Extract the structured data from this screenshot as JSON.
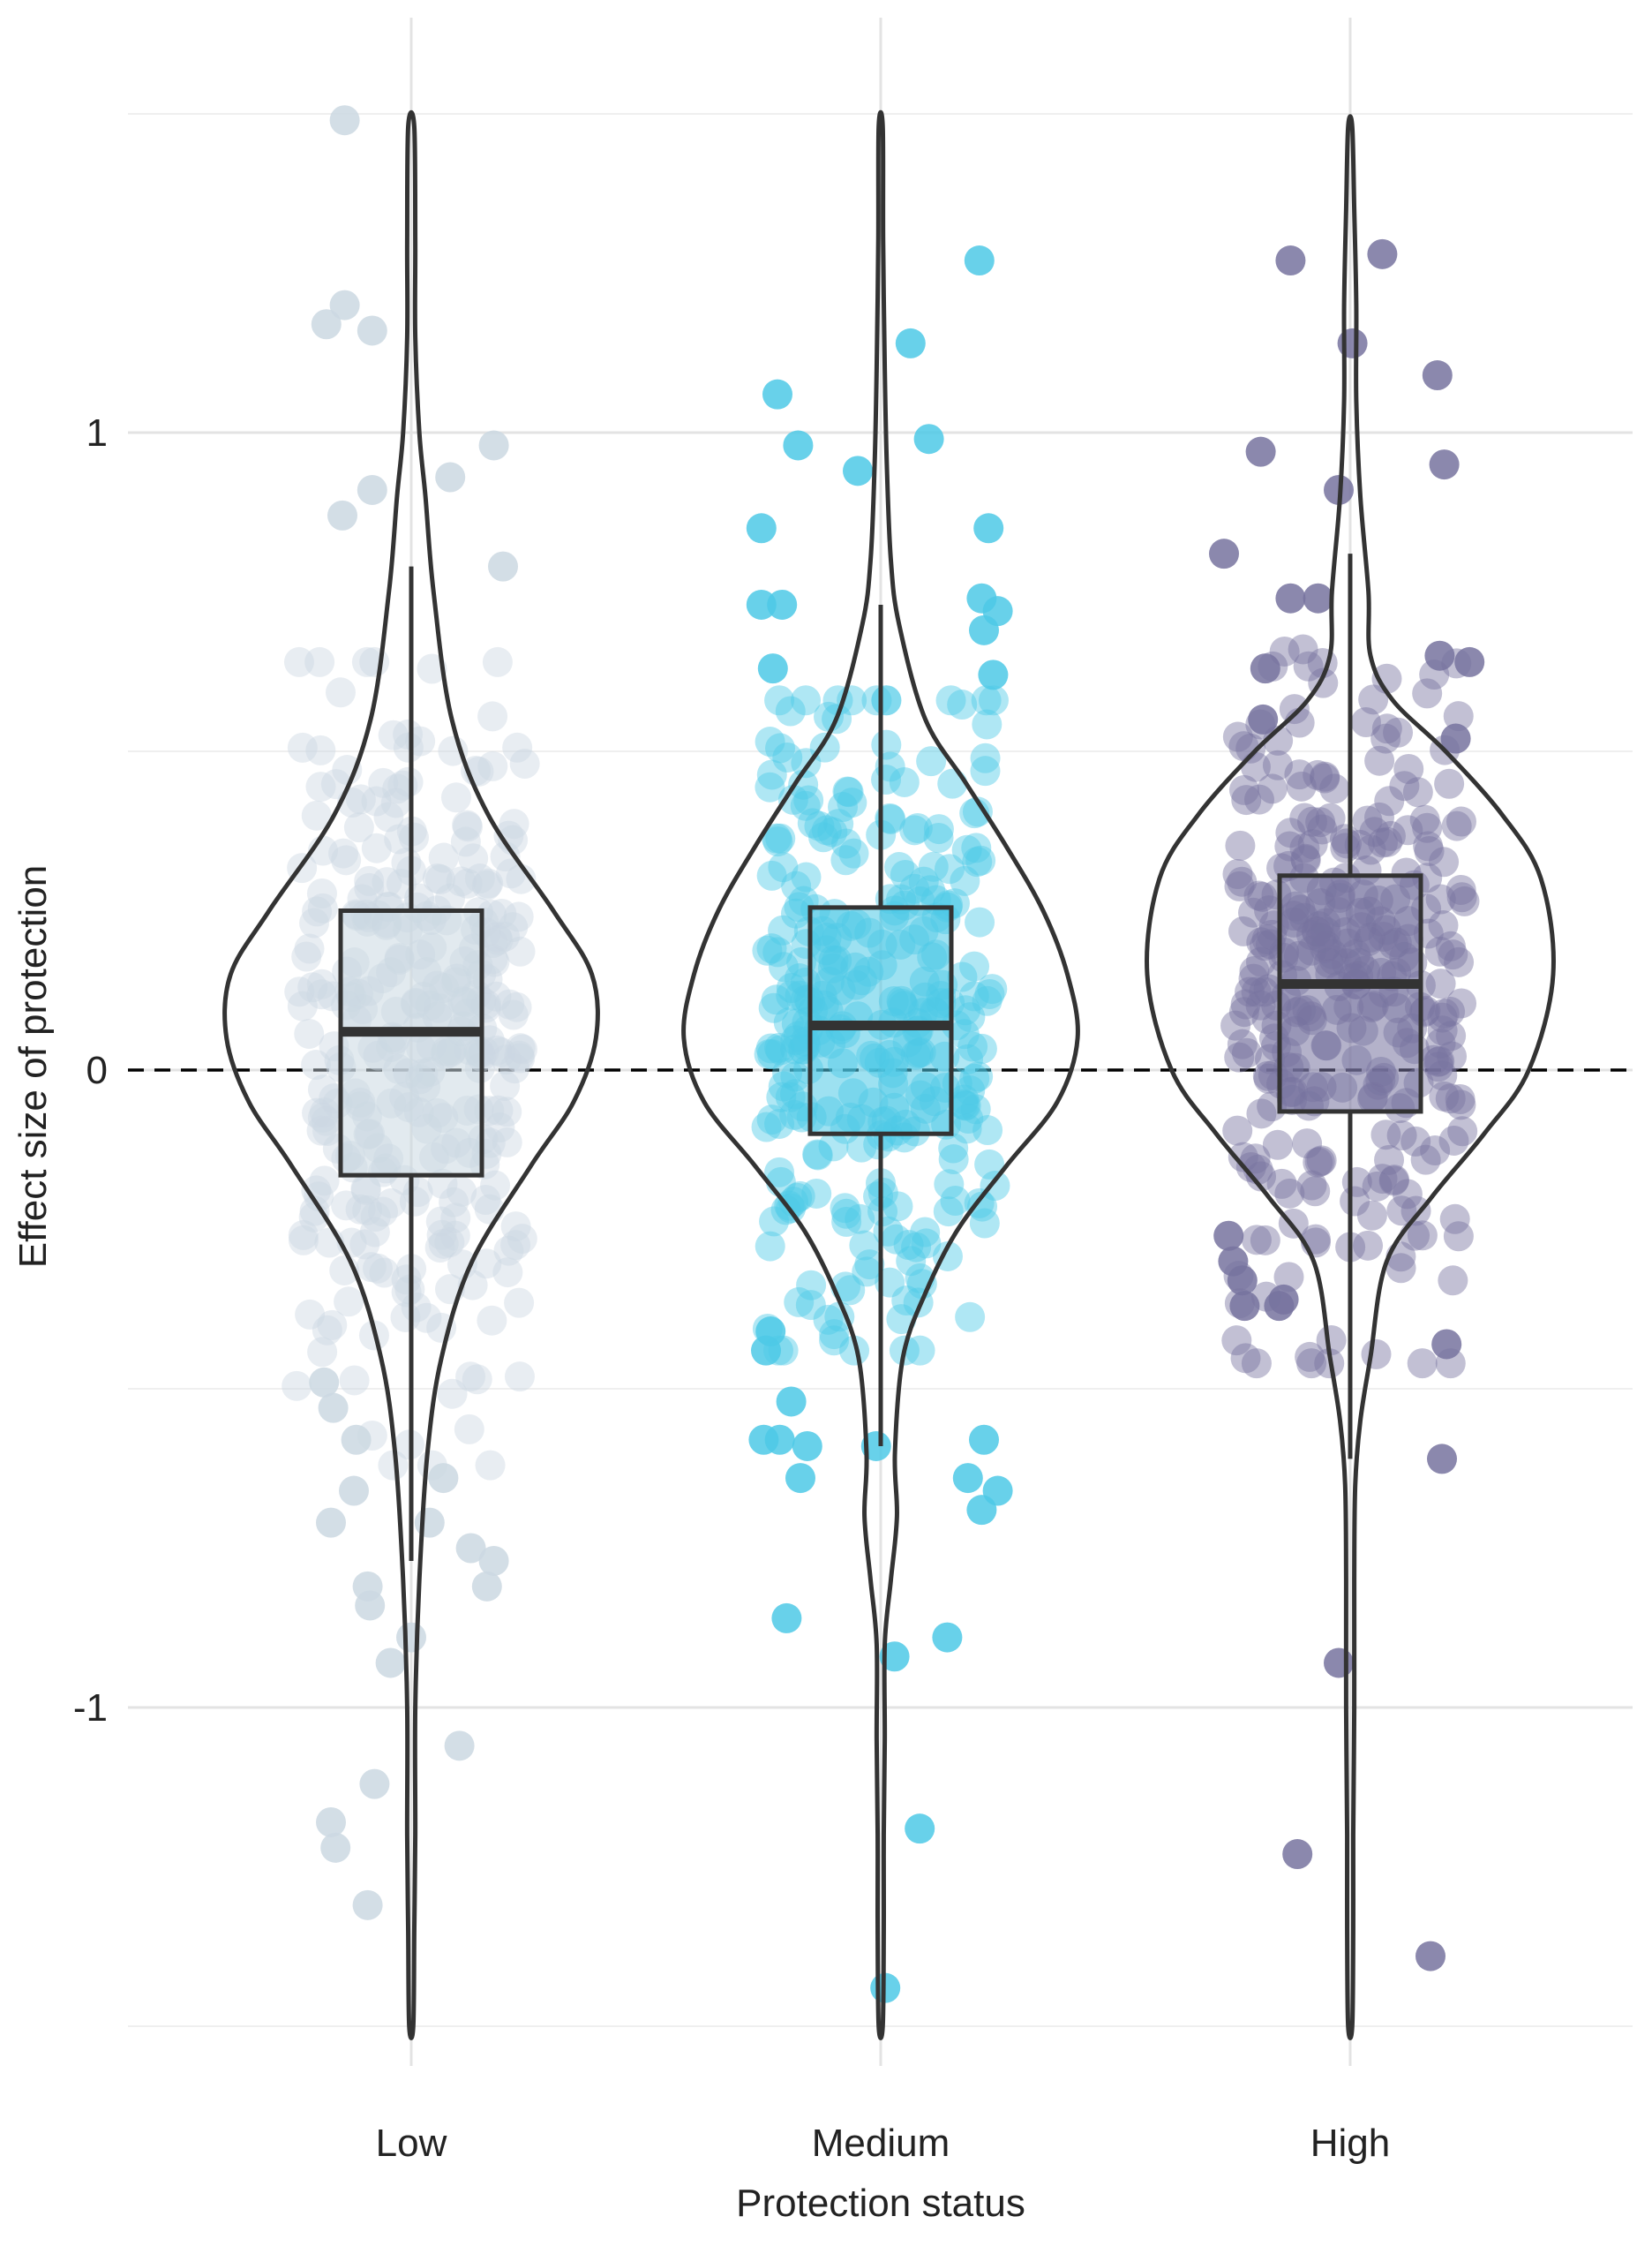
{
  "chart_data": {
    "type": "violin",
    "xlabel": "Protection status",
    "ylabel": "Effect size of protection",
    "categories": [
      "Low",
      "Medium",
      "High"
    ],
    "yticks": [
      {
        "value": 1,
        "label": "1"
      },
      {
        "value": 0,
        "label": "0"
      },
      {
        "value": -1,
        "label": "-1"
      }
    ],
    "ylim": [
      -1.5,
      1.5
    ],
    "grid": true,
    "legend": "none",
    "reference_line": {
      "y": 0,
      "style": "dashed"
    },
    "series": [
      {
        "category": "Low",
        "color": "#cbd8e2",
        "box": {
          "whisker_low": -0.77,
          "q1": -0.165,
          "median": 0.06,
          "q3": 0.25,
          "whisker_high": 0.79
        },
        "range": [
          -1.5,
          1.5
        ],
        "violin_density": [
          {
            "y": 1.48,
            "w": 0.015
          },
          {
            "y": 1.3,
            "w": 0.02
          },
          {
            "y": 1.15,
            "w": 0.02
          },
          {
            "y": 1.0,
            "w": 0.04
          },
          {
            "y": 0.9,
            "w": 0.07
          },
          {
            "y": 0.75,
            "w": 0.11
          },
          {
            "y": 0.55,
            "w": 0.2
          },
          {
            "y": 0.4,
            "w": 0.38
          },
          {
            "y": 0.25,
            "w": 0.7
          },
          {
            "y": 0.15,
            "w": 0.89
          },
          {
            "y": 0.05,
            "w": 0.91
          },
          {
            "y": -0.05,
            "w": 0.8
          },
          {
            "y": -0.15,
            "w": 0.59
          },
          {
            "y": -0.3,
            "w": 0.3
          },
          {
            "y": -0.45,
            "w": 0.15
          },
          {
            "y": -0.6,
            "w": 0.08
          },
          {
            "y": -0.8,
            "w": 0.04
          },
          {
            "y": -1.0,
            "w": 0.02
          },
          {
            "y": -1.2,
            "w": 0.02
          },
          {
            "y": -1.35,
            "w": 0.015
          },
          {
            "y": -1.5,
            "w": 0.01
          }
        ],
        "outlier_points": [
          {
            "x": -0.29,
            "y": 1.49
          },
          {
            "x": -0.29,
            "y": 1.2
          },
          {
            "x": -0.37,
            "y": 1.17
          },
          {
            "x": -0.17,
            "y": 1.16
          },
          {
            "x": 0.36,
            "y": 0.98
          },
          {
            "x": 0.17,
            "y": 0.93
          },
          {
            "x": -0.17,
            "y": 0.91
          },
          {
            "x": -0.3,
            "y": 0.87
          },
          {
            "x": 0.4,
            "y": 0.79
          },
          {
            "x": -0.38,
            "y": -0.49
          },
          {
            "x": -0.34,
            "y": -0.53
          },
          {
            "x": -0.24,
            "y": -0.58
          },
          {
            "x": -0.35,
            "y": -0.71
          },
          {
            "x": -0.25,
            "y": -0.66
          },
          {
            "x": 0.14,
            "y": -0.64
          },
          {
            "x": 0.26,
            "y": -0.75
          },
          {
            "x": 0.36,
            "y": -0.77
          },
          {
            "x": 0.33,
            "y": -0.81
          },
          {
            "x": -0.19,
            "y": -0.81
          },
          {
            "x": -0.18,
            "y": -0.84
          },
          {
            "x": 0.08,
            "y": -0.71
          },
          {
            "x": -0.09,
            "y": -0.93
          },
          {
            "x": 0.0,
            "y": -0.89
          },
          {
            "x": 0.21,
            "y": -1.06
          },
          {
            "x": -0.16,
            "y": -1.12
          },
          {
            "x": -0.35,
            "y": -1.18
          },
          {
            "x": -0.33,
            "y": -1.22
          },
          {
            "x": -0.19,
            "y": -1.31
          }
        ]
      },
      {
        "category": "Medium",
        "color": "#4dc9e6",
        "box": {
          "whisker_low": -0.59,
          "q1": -0.1,
          "median": 0.07,
          "q3": 0.255,
          "whisker_high": 0.73
        },
        "range": [
          -1.5,
          1.49
        ],
        "violin_density": [
          {
            "y": 1.48,
            "w": 0.01
          },
          {
            "y": 1.3,
            "w": 0.012
          },
          {
            "y": 1.1,
            "w": 0.02
          },
          {
            "y": 0.95,
            "w": 0.03
          },
          {
            "y": 0.8,
            "w": 0.05
          },
          {
            "y": 0.7,
            "w": 0.09
          },
          {
            "y": 0.55,
            "w": 0.22
          },
          {
            "y": 0.45,
            "w": 0.42
          },
          {
            "y": 0.35,
            "w": 0.62
          },
          {
            "y": 0.25,
            "w": 0.8
          },
          {
            "y": 0.15,
            "w": 0.92
          },
          {
            "y": 0.05,
            "w": 0.97
          },
          {
            "y": -0.05,
            "w": 0.87
          },
          {
            "y": -0.15,
            "w": 0.62
          },
          {
            "y": -0.25,
            "w": 0.38
          },
          {
            "y": -0.35,
            "w": 0.22
          },
          {
            "y": -0.45,
            "w": 0.11
          },
          {
            "y": -0.6,
            "w": 0.07
          },
          {
            "y": -0.7,
            "w": 0.08
          },
          {
            "y": -0.8,
            "w": 0.05
          },
          {
            "y": -0.9,
            "w": 0.02
          },
          {
            "y": -1.05,
            "w": 0.02
          },
          {
            "y": -1.2,
            "w": 0.015
          },
          {
            "y": -1.35,
            "w": 0.015
          },
          {
            "y": -1.5,
            "w": 0.01
          }
        ],
        "outlier_points": [
          {
            "x": 0.43,
            "y": 1.27
          },
          {
            "x": 0.13,
            "y": 1.14
          },
          {
            "x": -0.45,
            "y": 1.06
          },
          {
            "x": -0.36,
            "y": 0.98
          },
          {
            "x": 0.21,
            "y": 0.99
          },
          {
            "x": -0.1,
            "y": 0.94
          },
          {
            "x": -0.52,
            "y": 0.85
          },
          {
            "x": 0.47,
            "y": 0.85
          },
          {
            "x": -0.52,
            "y": 0.73
          },
          {
            "x": -0.43,
            "y": 0.73
          },
          {
            "x": 0.44,
            "y": 0.74
          },
          {
            "x": 0.51,
            "y": 0.72
          },
          {
            "x": 0.45,
            "y": 0.69
          },
          {
            "x": -0.47,
            "y": 0.63
          },
          {
            "x": 0.49,
            "y": 0.62
          },
          {
            "x": -0.39,
            "y": -0.52
          },
          {
            "x": -0.48,
            "y": -0.41
          },
          {
            "x": -0.5,
            "y": -0.44
          },
          {
            "x": -0.32,
            "y": -0.59
          },
          {
            "x": -0.44,
            "y": -0.58
          },
          {
            "x": -0.51,
            "y": -0.58
          },
          {
            "x": -0.35,
            "y": -0.64
          },
          {
            "x": -0.02,
            "y": -0.59
          },
          {
            "x": 0.45,
            "y": -0.58
          },
          {
            "x": 0.38,
            "y": -0.64
          },
          {
            "x": 0.51,
            "y": -0.66
          },
          {
            "x": 0.44,
            "y": -0.69
          },
          {
            "x": -0.41,
            "y": -0.86
          },
          {
            "x": 0.06,
            "y": -0.92
          },
          {
            "x": 0.29,
            "y": -0.89
          },
          {
            "x": 0.17,
            "y": -1.19
          },
          {
            "x": 0.02,
            "y": -1.44
          }
        ]
      },
      {
        "category": "High",
        "color": "#77739f",
        "box": {
          "whisker_low": -0.61,
          "q1": -0.065,
          "median": 0.135,
          "q3": 0.305,
          "whisker_high": 0.81
        },
        "range": [
          -1.5,
          1.5
        ],
        "violin_density": [
          {
            "y": 1.48,
            "w": 0.01
          },
          {
            "y": 1.35,
            "w": 0.02
          },
          {
            "y": 1.2,
            "w": 0.03
          },
          {
            "y": 1.05,
            "w": 0.03
          },
          {
            "y": 0.9,
            "w": 0.05
          },
          {
            "y": 0.75,
            "w": 0.09
          },
          {
            "y": 0.65,
            "w": 0.1
          },
          {
            "y": 0.58,
            "w": 0.21
          },
          {
            "y": 0.5,
            "w": 0.47
          },
          {
            "y": 0.4,
            "w": 0.75
          },
          {
            "y": 0.3,
            "w": 0.94
          },
          {
            "y": 0.15,
            "w": 1.0
          },
          {
            "y": 0.0,
            "w": 0.88
          },
          {
            "y": -0.1,
            "w": 0.66
          },
          {
            "y": -0.2,
            "w": 0.4
          },
          {
            "y": -0.3,
            "w": 0.18
          },
          {
            "y": -0.45,
            "w": 0.1
          },
          {
            "y": -0.55,
            "w": 0.05
          },
          {
            "y": -0.65,
            "w": 0.025
          },
          {
            "y": -0.8,
            "w": 0.02
          },
          {
            "y": -1.0,
            "w": 0.02
          },
          {
            "y": -1.2,
            "w": 0.015
          },
          {
            "y": -1.35,
            "w": 0.015
          },
          {
            "y": -1.5,
            "w": 0.01
          }
        ],
        "outlier_points": [
          {
            "x": -0.26,
            "y": 1.27
          },
          {
            "x": 0.14,
            "y": 1.28
          },
          {
            "x": 0.01,
            "y": 1.14
          },
          {
            "x": 0.38,
            "y": 1.09
          },
          {
            "x": -0.39,
            "y": 0.97
          },
          {
            "x": 0.41,
            "y": 0.95
          },
          {
            "x": -0.05,
            "y": 0.91
          },
          {
            "x": -0.55,
            "y": 0.81
          },
          {
            "x": -0.26,
            "y": 0.74
          },
          {
            "x": -0.14,
            "y": 0.74
          },
          {
            "x": 0.39,
            "y": 0.65
          },
          {
            "x": 0.52,
            "y": 0.64
          },
          {
            "x": -0.37,
            "y": 0.63
          },
          {
            "x": 0.46,
            "y": 0.52
          },
          {
            "x": -0.38,
            "y": 0.55
          },
          {
            "x": -0.53,
            "y": -0.26
          },
          {
            "x": -0.51,
            "y": -0.3
          },
          {
            "x": -0.47,
            "y": -0.33
          },
          {
            "x": -0.46,
            "y": -0.37
          },
          {
            "x": -0.31,
            "y": -0.37
          },
          {
            "x": -0.29,
            "y": -0.36
          },
          {
            "x": 0.42,
            "y": -0.43
          },
          {
            "x": 0.4,
            "y": -0.61
          },
          {
            "x": -0.05,
            "y": -0.93
          },
          {
            "x": -0.23,
            "y": -1.23
          },
          {
            "x": 0.35,
            "y": -1.39
          }
        ]
      }
    ]
  }
}
